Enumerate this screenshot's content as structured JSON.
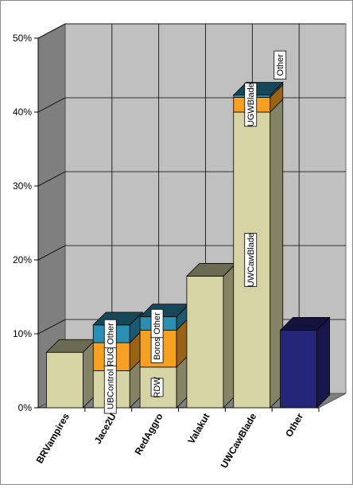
{
  "chart_data": {
    "type": "bar",
    "stacked": true,
    "style": "3d",
    "title": "",
    "xlabel": "",
    "ylabel": "",
    "ylim": [
      0,
      50
    ],
    "yticks": [
      0,
      10,
      20,
      30,
      40,
      50
    ],
    "ytick_format": "percent",
    "grid": true,
    "legend": "none",
    "categories": [
      "BRVampires",
      "Jace2U",
      "RedAggro",
      "Valakut",
      "UWCawBlade",
      "Other"
    ],
    "bars": [
      {
        "category": "BRVampires",
        "segments": [
          {
            "value": 7.5,
            "color": "#d6d4a4",
            "label": ""
          }
        ]
      },
      {
        "category": "Jace2U",
        "segments": [
          {
            "value": 5,
            "color": "#d6d4a4",
            "label": "UBControl"
          },
          {
            "value": 3.8,
            "color": "#f5a023",
            "label": "RUG"
          },
          {
            "value": 2.4,
            "color": "#2b8fb3",
            "label": "Other"
          }
        ]
      },
      {
        "category": "RedAggro",
        "segments": [
          {
            "value": 5.5,
            "color": "#d6d4a4",
            "label": "RDW"
          },
          {
            "value": 5,
            "color": "#f5a023",
            "label": "Boros"
          },
          {
            "value": 1.8,
            "color": "#2b8fb3",
            "label": "Other"
          }
        ]
      },
      {
        "category": "Valakut",
        "segments": [
          {
            "value": 17.8,
            "color": "#d6d4a4",
            "label": ""
          }
        ]
      },
      {
        "category": "UWCawBlade",
        "segments": [
          {
            "value": 40,
            "color": "#d6d4a4",
            "label": "UWCawBlade"
          },
          {
            "value": 2,
            "color": "#f5a023",
            "label": "UGWBlade"
          },
          {
            "value": 0.3,
            "color": "#2b8fb3",
            "label": "Other"
          }
        ]
      },
      {
        "category": "Other",
        "segments": [
          {
            "value": 10.5,
            "color": "#25257a",
            "label": ""
          }
        ]
      }
    ]
  }
}
